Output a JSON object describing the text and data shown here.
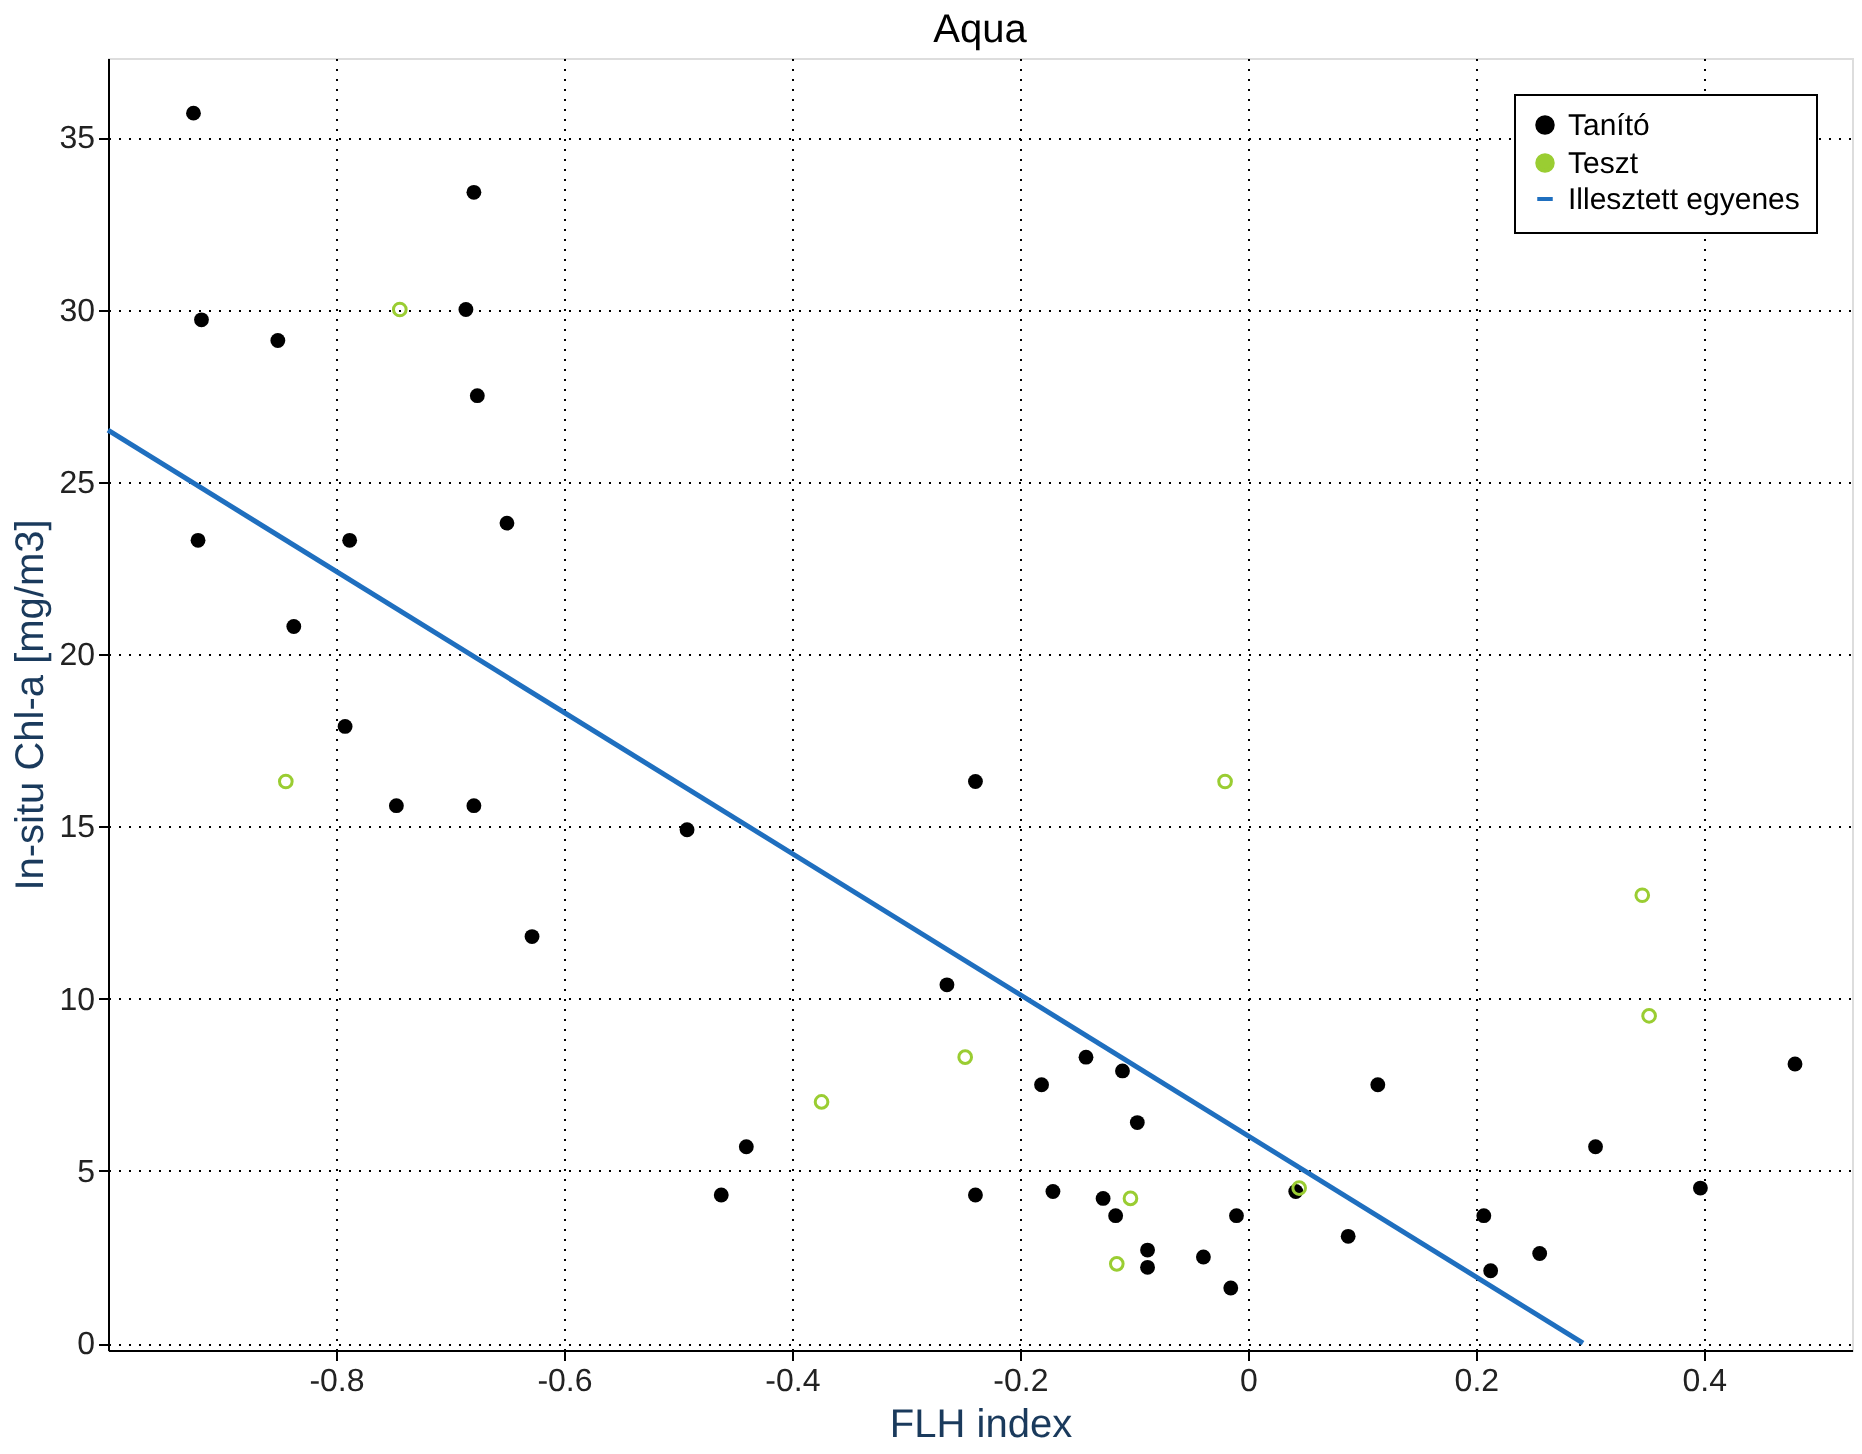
{
  "chart_data": {
    "type": "scatter",
    "title": "Aqua",
    "xlabel": "FLH index",
    "ylabel": "In-situ Chl-a [mg/m3]",
    "xlim": [
      -1,
      0.53
    ],
    "ylim": [
      -0.2,
      37.3
    ],
    "xticks": [
      -0.8,
      -0.6,
      -0.4,
      -0.2,
      0,
      0.2,
      0.4
    ],
    "yticks": [
      0,
      5,
      10,
      15,
      20,
      25,
      30,
      35
    ],
    "grid": true,
    "legend": "top right",
    "marker": "circle",
    "series": [
      {
        "name": "Tanító",
        "color": "#000000",
        "x": [
          -0.925,
          -0.679,
          -0.918,
          -0.686,
          -0.851,
          -0.676,
          -0.921,
          -0.788,
          -0.65,
          -0.837,
          -0.792,
          -0.747,
          -0.679,
          -0.492,
          -0.628,
          -0.44,
          -0.462,
          -0.239,
          -0.264,
          -0.142,
          -0.11,
          -0.181,
          -0.097,
          -0.239,
          -0.171,
          -0.127,
          -0.116,
          -0.088,
          -0.088,
          -0.039,
          -0.01,
          -0.015,
          0.042,
          0.48,
          0.114,
          0.305,
          0.397,
          0.207,
          0.088,
          0.256,
          0.213
        ],
        "values": [
          35.7,
          33.4,
          29.7,
          30.0,
          29.1,
          27.5,
          23.3,
          23.3,
          23.8,
          20.8,
          17.9,
          15.6,
          15.6,
          14.9,
          11.8,
          5.7,
          4.3,
          16.3,
          10.4,
          8.3,
          7.9,
          7.5,
          6.4,
          4.3,
          4.4,
          4.2,
          3.7,
          2.7,
          2.2,
          2.5,
          3.7,
          1.6,
          4.4,
          8.1,
          7.5,
          5.7,
          4.5,
          3.7,
          3.1,
          2.6,
          2.1
        ]
      },
      {
        "name": "Teszt",
        "color": "#9acd32",
        "x": [
          -0.744,
          -0.844,
          -0.02,
          -0.248,
          -0.374,
          -0.103,
          -0.115,
          0.045,
          0.346,
          0.352
        ],
        "values": [
          30.0,
          16.3,
          16.3,
          8.3,
          7.0,
          4.2,
          2.3,
          4.5,
          13.0,
          9.5
        ]
      },
      {
        "name": "Illesztett egyenes",
        "type": "line",
        "marker": "none",
        "color": "#1f6fbf",
        "x": [
          -1,
          0.294
        ],
        "values": [
          26.5,
          0
        ]
      }
    ]
  }
}
